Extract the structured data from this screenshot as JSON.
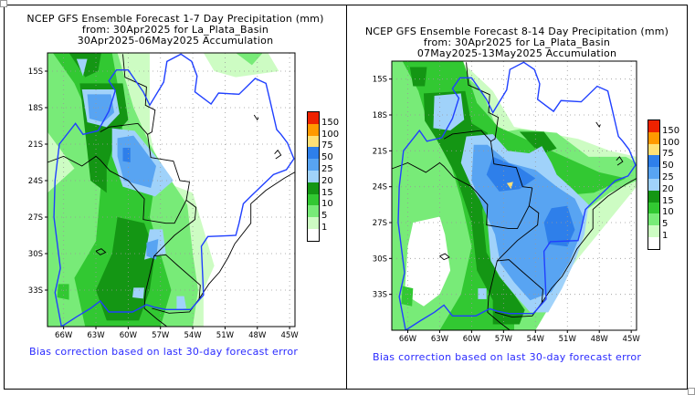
{
  "legend": {
    "levels": [
      "150",
      "100",
      "75",
      "50",
      "25",
      "20",
      "15",
      "10",
      "5",
      "1"
    ],
    "colors": [
      "#ee2200",
      "#ff9900",
      "#ffe075",
      "#2e7fea",
      "#58a4f2",
      "#a0d2fa",
      "#149614",
      "#32c832",
      "#78eb78",
      "#cdfcc3",
      "#ffffff"
    ]
  },
  "colors": {
    "coast": "#2040ff",
    "border": "#000000",
    "footnote": "#2a2aff"
  },
  "panels": [
    {
      "title_line1": "NCEP GFS Ensemble Forecast 1-7 Day Precipitation (mm)",
      "title_line2": "from: 30Apr2025   for La_Plata_Basin",
      "title_line3": "30Apr2025-06May2025 Accumulation",
      "footnote": "Bias correction based on last 30-day forecast error",
      "lat_ticks": [
        "15S",
        "18S",
        "21S",
        "24S",
        "27S",
        "30S",
        "33S"
      ],
      "lon_ticks": [
        "66W",
        "63W",
        "60W",
        "57W",
        "54W",
        "51W",
        "48W",
        "45W"
      ]
    },
    {
      "title_line1": "NCEP GFS Ensemble Forecast 8-14 Day Precipitation (mm)",
      "title_line2": "from: 30Apr2025   for La_Plata_Basin",
      "title_line3": "07May2025-13May2025 Accumulation",
      "footnote": "Bias correction based on last 30-day forecast error",
      "lat_ticks": [
        "15S",
        "18S",
        "21S",
        "24S",
        "27S",
        "30S",
        "33S"
      ],
      "lon_ticks": [
        "66W",
        "63W",
        "60W",
        "57W",
        "54W",
        "51W",
        "48W",
        "45W"
      ]
    }
  ]
}
